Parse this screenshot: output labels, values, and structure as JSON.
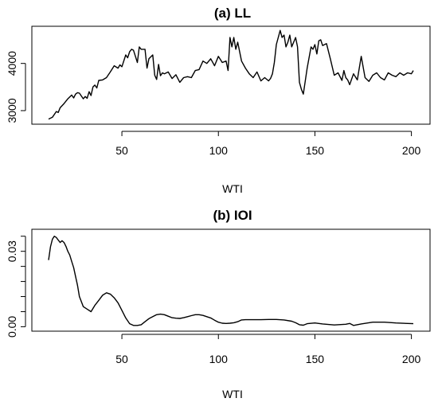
{
  "chart_data": [
    {
      "type": "line",
      "title": "(a) LL",
      "xlabel": "WTI",
      "ylabel": "",
      "xlim": [
        5,
        208
      ],
      "ylim": [
        2780,
        4720
      ],
      "xticks": [
        50,
        100,
        150,
        200
      ],
      "yticks": [
        3000,
        4000
      ],
      "series": [
        {
          "x": [
            12,
            14,
            16,
            17,
            18,
            20,
            22,
            24,
            25,
            26,
            27,
            28,
            30,
            31,
            32,
            33,
            34,
            35,
            36,
            37,
            38,
            40,
            42,
            44,
            46,
            48,
            49,
            50,
            52,
            53,
            54,
            55,
            56,
            58,
            59,
            60,
            62,
            63,
            64,
            66,
            67,
            68,
            69,
            70,
            71,
            72,
            74,
            76,
            78,
            80,
            82,
            84,
            86,
            88,
            90,
            92,
            94,
            96,
            98,
            100,
            102,
            104,
            105,
            106,
            107,
            108,
            109,
            110,
            112,
            114,
            116,
            118,
            120,
            122,
            124,
            126,
            127,
            128,
            129,
            130,
            132,
            133,
            134,
            135,
            136,
            137,
            138,
            140,
            141,
            142,
            143,
            144,
            146,
            148,
            149,
            150,
            151,
            152,
            153,
            154,
            156,
            158,
            160,
            162,
            164,
            165,
            166,
            167,
            168,
            170,
            172,
            174,
            176,
            178,
            180,
            182,
            184,
            186,
            188,
            190,
            192,
            194,
            196,
            198,
            200,
            201
          ],
          "y": [
            2820,
            2860,
            2980,
            2960,
            3060,
            3150,
            3250,
            3330,
            3270,
            3350,
            3380,
            3370,
            3250,
            3300,
            3260,
            3400,
            3320,
            3500,
            3540,
            3480,
            3640,
            3650,
            3700,
            3820,
            3950,
            3900,
            3970,
            3930,
            4180,
            4120,
            4250,
            4300,
            4280,
            4020,
            4350,
            4300,
            4300,
            3900,
            4100,
            4180,
            3750,
            3660,
            3980,
            3740,
            3800,
            3780,
            3820,
            3680,
            3760,
            3600,
            3700,
            3720,
            3700,
            3850,
            3870,
            4050,
            4000,
            4100,
            3950,
            4150,
            4020,
            4050,
            3850,
            4550,
            4350,
            4550,
            4300,
            4450,
            4050,
            3900,
            3780,
            3700,
            3820,
            3630,
            3700,
            3630,
            3680,
            3780,
            4020,
            4400,
            4700,
            4550,
            4600,
            4350,
            4450,
            4600,
            4350,
            4550,
            4350,
            3600,
            3450,
            3350,
            3900,
            4350,
            4300,
            4400,
            4200,
            4480,
            4500,
            4380,
            4420,
            4100,
            3750,
            3800,
            3640,
            3850,
            3700,
            3650,
            3550,
            3780,
            3650,
            4150,
            3700,
            3620,
            3750,
            3800,
            3700,
            3650,
            3800,
            3750,
            3720,
            3800,
            3750,
            3800,
            3780,
            3850
          ]
        }
      ]
    },
    {
      "type": "line",
      "title": "(b) IOI",
      "xlabel": "WTI",
      "ylabel": "",
      "xlim": [
        5,
        208
      ],
      "ylim": [
        -0.0005,
        0.0375
      ],
      "xticks": [
        50,
        100,
        150,
        200
      ],
      "yticks": [
        0.0,
        0.03
      ],
      "yticks_labels": [
        "0.00",
        "0.03"
      ],
      "ylines": [
        0.0,
        0.006,
        0.012,
        0.018,
        0.024,
        0.03,
        0.036
      ],
      "series": [
        {
          "x": [
            12,
            13,
            14,
            15,
            16,
            17,
            18,
            19,
            20,
            21,
            22,
            23,
            24,
            25,
            26,
            27,
            28,
            30,
            32,
            34,
            36,
            38,
            40,
            42,
            44,
            46,
            48,
            50,
            52,
            54,
            56,
            58,
            60,
            62,
            64,
            66,
            68,
            70,
            72,
            74,
            76,
            78,
            80,
            82,
            84,
            86,
            88,
            90,
            92,
            94,
            96,
            98,
            100,
            102,
            104,
            106,
            108,
            110,
            112,
            114,
            118,
            122,
            126,
            130,
            134,
            138,
            140,
            142,
            144,
            146,
            150,
            154,
            160,
            166,
            168,
            170,
            174,
            180,
            186,
            192,
            198,
            201
          ],
          "y": [
            0.0265,
            0.0318,
            0.0348,
            0.036,
            0.0355,
            0.0345,
            0.0335,
            0.0342,
            0.0335,
            0.032,
            0.03,
            0.0285,
            0.026,
            0.0235,
            0.02,
            0.0165,
            0.012,
            0.008,
            0.007,
            0.006,
            0.0085,
            0.0105,
            0.0125,
            0.0135,
            0.013,
            0.0115,
            0.0095,
            0.0065,
            0.0035,
            0.0012,
            0.0005,
            0.0005,
            0.0008,
            0.002,
            0.0032,
            0.004,
            0.0048,
            0.005,
            0.0048,
            0.0042,
            0.0036,
            0.0034,
            0.0033,
            0.0036,
            0.004,
            0.0044,
            0.0048,
            0.0048,
            0.0045,
            0.004,
            0.0035,
            0.0026,
            0.0018,
            0.0014,
            0.0013,
            0.0014,
            0.0016,
            0.002,
            0.0027,
            0.0028,
            0.0028,
            0.0028,
            0.0029,
            0.0029,
            0.0027,
            0.0022,
            0.0016,
            0.0008,
            0.0006,
            0.0012,
            0.0015,
            0.0011,
            0.0007,
            0.001,
            0.0013,
            0.0005,
            0.0011,
            0.0018,
            0.0018,
            0.0015,
            0.0013,
            0.0012
          ]
        }
      ]
    }
  ]
}
